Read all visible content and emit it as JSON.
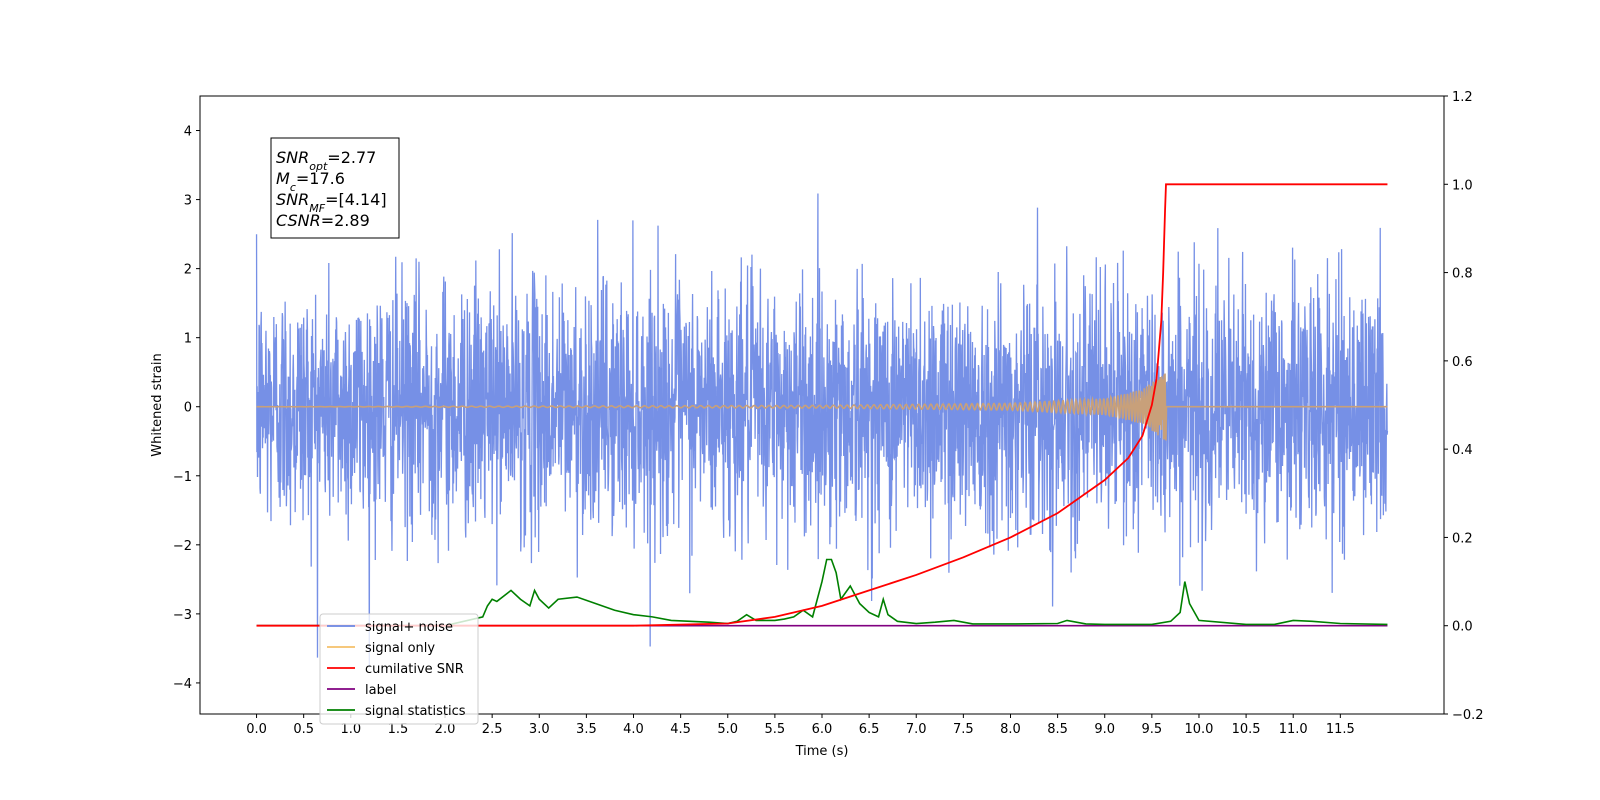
{
  "chart_data": {
    "type": "line",
    "xlabel": "Time (s)",
    "ylabel": "Whitened strain",
    "xlim": [
      -0.6,
      12.6
    ],
    "ylim": [
      -4.45,
      4.5
    ],
    "y2lim": [
      -0.2,
      1.2
    ],
    "x_ticks": [
      "0.0",
      "0.5",
      "1.0",
      "1.5",
      "2.0",
      "2.5",
      "3.0",
      "3.5",
      "4.0",
      "4.5",
      "5.0",
      "5.5",
      "6.0",
      "6.5",
      "7.0",
      "7.5",
      "8.0",
      "8.5",
      "9.0",
      "9.5",
      "10.0",
      "10.5",
      "11.0",
      "11.5"
    ],
    "y_ticks": [
      "−4",
      "−3",
      "−2",
      "−1",
      "0",
      "1",
      "2",
      "3",
      "4"
    ],
    "y2_ticks": [
      "−0.2",
      "0.0",
      "0.2",
      "0.4",
      "0.6",
      "0.8",
      "1.0",
      "1.2"
    ],
    "legend_placement": "lower-left",
    "colors": {
      "signal_noise": "#6a87e4",
      "signal_only": "#f5c06a",
      "cumulative_snr": "#ff0000",
      "label": "#800080",
      "signal_statistics": "#008000",
      "signal_chirp": "#c8a07a"
    },
    "annotation": [
      {
        "base": "SNR",
        "sub": "opt",
        "value": "=2.77"
      },
      {
        "base": "M",
        "sub": "c",
        "value": "=17.6"
      },
      {
        "base": "SNR",
        "sub": "MF",
        "value": "=[4.14]"
      },
      {
        "base": "CSNR",
        "sub": "",
        "value": "=2.89"
      }
    ],
    "series": [
      {
        "name": "signal+ noise",
        "axis": "left",
        "noise_std": 0.9,
        "x_range": [
          0,
          12
        ]
      },
      {
        "name": "signal only",
        "axis": "left",
        "merger_time": 9.65,
        "envelope": {
          "x": [
            0,
            6,
            8,
            9,
            9.4,
            9.6,
            9.65
          ],
          "amplitude": [
            0.0,
            0.02,
            0.05,
            0.12,
            0.25,
            0.45,
            0.5
          ]
        }
      },
      {
        "name": "cumilative SNR",
        "axis": "right",
        "x": [
          0,
          4,
          5,
          5.5,
          6,
          6.5,
          7,
          7.5,
          8,
          8.5,
          9,
          9.25,
          9.4,
          9.5,
          9.55,
          9.6,
          9.62,
          9.64,
          9.65,
          12
        ],
        "y": [
          0,
          0,
          0.005,
          0.02,
          0.045,
          0.08,
          0.115,
          0.155,
          0.2,
          0.255,
          0.33,
          0.38,
          0.43,
          0.5,
          0.56,
          0.69,
          0.8,
          0.94,
          1.0,
          1.0
        ]
      },
      {
        "name": "label",
        "axis": "right",
        "x": [
          0,
          12
        ],
        "y": [
          0,
          0
        ]
      },
      {
        "name": "signal statistics",
        "axis": "right",
        "x": [
          0,
          1,
          2,
          2.4,
          2.45,
          2.5,
          2.55,
          2.7,
          2.8,
          2.9,
          2.95,
          3.0,
          3.1,
          3.2,
          3.4,
          3.6,
          3.8,
          4.0,
          4.2,
          4.4,
          4.6,
          4.8,
          5.0,
          5.1,
          5.2,
          5.3,
          5.5,
          5.6,
          5.7,
          5.8,
          5.9,
          6.0,
          6.05,
          6.1,
          6.15,
          6.2,
          6.3,
          6.4,
          6.5,
          6.6,
          6.65,
          6.7,
          6.8,
          7.0,
          7.2,
          7.4,
          7.6,
          8.0,
          8.5,
          8.6,
          8.8,
          9.0,
          9.5,
          9.7,
          9.8,
          9.85,
          9.9,
          10.0,
          10.5,
          10.8,
          11.0,
          11.2,
          11.5,
          12.0
        ],
        "y": [
          0,
          0,
          0,
          0.02,
          0.045,
          0.06,
          0.055,
          0.08,
          0.06,
          0.045,
          0.08,
          0.06,
          0.04,
          0.06,
          0.065,
          0.05,
          0.035,
          0.025,
          0.02,
          0.012,
          0.01,
          0.008,
          0.005,
          0.01,
          0.025,
          0.012,
          0.012,
          0.015,
          0.02,
          0.035,
          0.02,
          0.1,
          0.15,
          0.15,
          0.12,
          0.06,
          0.09,
          0.05,
          0.03,
          0.02,
          0.06,
          0.025,
          0.01,
          0.005,
          0.008,
          0.012,
          0.004,
          0.004,
          0.005,
          0.012,
          0.004,
          0.003,
          0.003,
          0.01,
          0.03,
          0.1,
          0.05,
          0.012,
          0.003,
          0.003,
          0.012,
          0.01,
          0.005,
          0.003
        ]
      }
    ]
  },
  "legend": {
    "items": [
      {
        "label": "signal+ noise",
        "color": "#6a87e4"
      },
      {
        "label": "signal only",
        "color": "#f5c06a"
      },
      {
        "label": "cumilative SNR",
        "color": "#ff0000"
      },
      {
        "label": "label",
        "color": "#800080"
      },
      {
        "label": "signal statistics",
        "color": "#008000"
      }
    ]
  }
}
